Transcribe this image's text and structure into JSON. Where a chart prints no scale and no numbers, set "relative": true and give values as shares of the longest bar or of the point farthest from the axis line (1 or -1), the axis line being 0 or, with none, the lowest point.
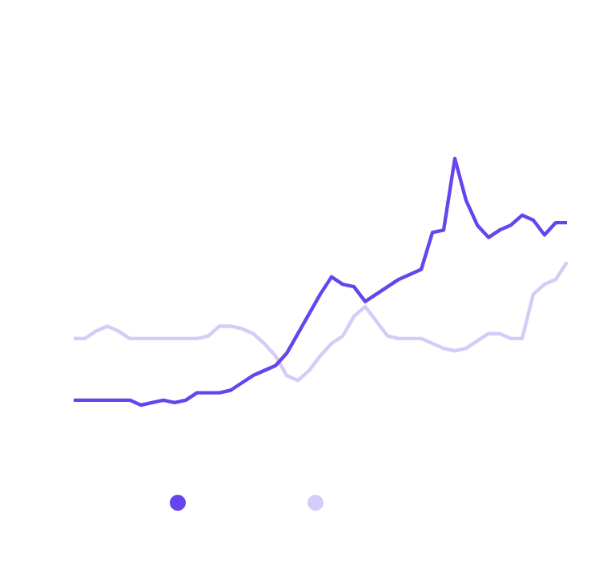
{
  "chart_data": {
    "type": "line",
    "relative": true,
    "marker": "none",
    "line_style": "solid",
    "categories": [
      null,
      null,
      null,
      null,
      null,
      null,
      null,
      null,
      null,
      null,
      null,
      null,
      null,
      null,
      null,
      null,
      null,
      null,
      null,
      null,
      null,
      null,
      null,
      null,
      null,
      null,
      null,
      null,
      null,
      null,
      null,
      null,
      null,
      null,
      null,
      null,
      null,
      null,
      null,
      null,
      null,
      null,
      null,
      null,
      null
    ],
    "series": [
      {
        "color": "#6644ee",
        "values": [
          0.02,
          0.02,
          0.02,
          0.02,
          0.02,
          0.02,
          0,
          0.01,
          0.02,
          0.01,
          0.02,
          0.05,
          0.05,
          0.05,
          0.06,
          0.09,
          0.12,
          0.14,
          0.16,
          0.21,
          0.29,
          0.37,
          0.45,
          0.52,
          0.49,
          0.48,
          0.42,
          0.45,
          0.48,
          0.51,
          0.53,
          0.55,
          0.7,
          0.71,
          1.0,
          0.83,
          0.73,
          0.68,
          0.71,
          0.73,
          0.77,
          0.75,
          0.69,
          0.74,
          0.74
        ]
      },
      {
        "color": "#d4ccf8",
        "values": [
          0.27,
          0.27,
          0.3,
          0.32,
          0.3,
          0.27,
          0.27,
          0.27,
          0.27,
          0.27,
          0.27,
          0.27,
          0.28,
          0.32,
          0.32,
          0.31,
          0.29,
          0.25,
          0.2,
          0.12,
          0.1,
          0.14,
          0.2,
          0.25,
          0.28,
          0.36,
          0.4,
          0.34,
          0.28,
          0.27,
          0.27,
          0.27,
          0.25,
          0.23,
          0.22,
          0.23,
          0.26,
          0.29,
          0.29,
          0.27,
          0.27,
          0.45,
          0.49,
          0.51,
          0.58
        ]
      }
    ]
  }
}
